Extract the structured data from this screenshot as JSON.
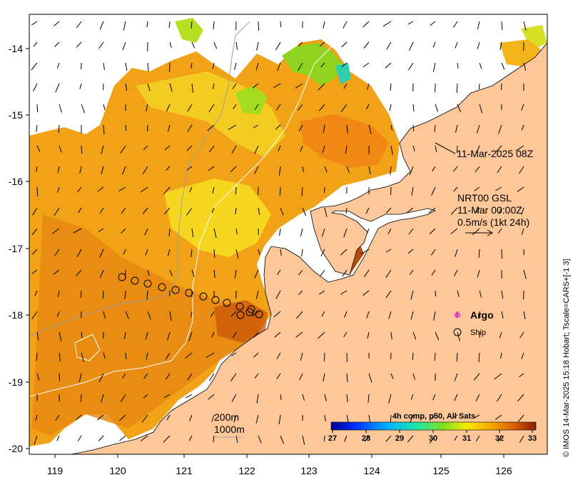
{
  "map": {
    "x_ticks": [
      "119",
      "120",
      "121",
      "122",
      "123",
      "124",
      "125",
      "126"
    ],
    "y_ticks": [
      "-14",
      "-15",
      "-16",
      "-17",
      "-18",
      "-19",
      "-20"
    ],
    "image_time": "11-Mar-2025 08Z",
    "current_product": "NRT00 GSL",
    "current_time": "11-Mar 00:00Z",
    "vector_scale": "0.5m/s (1kt 24h)",
    "contour_200": "200m",
    "contour_1000": "1000m",
    "legend": {
      "argo": "Argo",
      "ship": "Ship"
    },
    "colorbar": {
      "title": "4h comp, p50, All Sats",
      "ticks": [
        "27",
        "28",
        "29",
        "30",
        "31",
        "32",
        "33"
      ]
    },
    "credit": "© IMOS 14-Mar-2025 15:18 Hobart; Tscale=CARS+[-1 3]",
    "colors": {
      "land": "#fdc79a",
      "sst_warm": "#f59a10",
      "sst_hot": "#c94f0a",
      "sst_mid": "#f2c21a",
      "sst_cool": "#9ad81a",
      "argo": "#ff00ff"
    }
  }
}
